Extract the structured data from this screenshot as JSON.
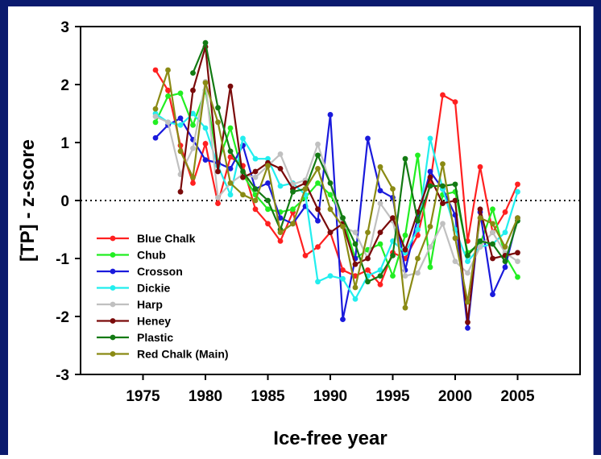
{
  "chart_data": {
    "type": "line",
    "xlabel": "Ice-free year",
    "ylabel": "[TP] - z-score",
    "xlim": [
      1970,
      2010
    ],
    "ylim": [
      -3,
      3
    ],
    "x_ticks": [
      1975,
      1980,
      1985,
      1990,
      1995,
      2000,
      2005
    ],
    "y_ticks": [
      3,
      2,
      1,
      0,
      -1,
      -2,
      -3
    ],
    "reference_line": {
      "y": 0,
      "style": "dotted"
    },
    "legend_position": "bottom-left",
    "colors": {
      "background_frame": "#0b1a6e",
      "plot_background": "#ffffff"
    },
    "x": [
      1976,
      1977,
      1978,
      1979,
      1980,
      1981,
      1982,
      1983,
      1984,
      1985,
      1986,
      1987,
      1988,
      1989,
      1990,
      1991,
      1992,
      1993,
      1994,
      1995,
      1996,
      1997,
      1998,
      1999,
      2000,
      2001,
      2002,
      2003,
      2004,
      2005
    ],
    "series": [
      {
        "name": "Blue Chalk",
        "color": "#ff2020",
        "values": [
          2.25,
          1.9,
          0.95,
          0.3,
          0.98,
          -0.05,
          0.75,
          0.6,
          -0.15,
          -0.4,
          -0.7,
          -0.2,
          -0.95,
          -0.8,
          -0.55,
          -1.2,
          -1.3,
          -1.2,
          -1.45,
          -0.9,
          -1.0,
          -0.6,
          0.3,
          1.82,
          1.7,
          -0.7,
          0.58,
          -0.55,
          -0.2,
          0.28
        ]
      },
      {
        "name": "Chub",
        "color": "#22ee22",
        "values": [
          1.35,
          1.8,
          1.85,
          1.3,
          1.9,
          0.65,
          1.25,
          0.45,
          0.1,
          -0.15,
          -0.2,
          -0.15,
          0.05,
          0.3,
          0.1,
          -0.3,
          -1.0,
          -0.85,
          -0.75,
          -1.3,
          -0.6,
          0.78,
          -1.15,
          0.1,
          0.15,
          -0.9,
          -0.75,
          -0.15,
          -0.95,
          -1.32
        ]
      },
      {
        "name": "Crosson",
        "color": "#1a1adc",
        "values": [
          1.08,
          1.3,
          1.42,
          1.05,
          0.7,
          0.65,
          0.55,
          0.95,
          0.2,
          0.3,
          -0.3,
          -0.4,
          -0.1,
          -0.35,
          1.48,
          -2.05,
          -1.0,
          1.07,
          0.17,
          0.05,
          -1.2,
          -0.3,
          0.5,
          0.2,
          -0.25,
          -2.2,
          -0.2,
          -1.62,
          -1.15,
          -0.3
        ]
      },
      {
        "name": "Dickie",
        "color": "#22eeee",
        "values": [
          1.5,
          1.35,
          1.3,
          1.5,
          1.25,
          0.6,
          0.1,
          1.07,
          0.72,
          0.72,
          0.25,
          0.3,
          0.1,
          -1.4,
          -1.3,
          -1.35,
          -1.7,
          -1.3,
          -1.2,
          -0.7,
          -0.9,
          -0.5,
          1.07,
          0.2,
          -0.5,
          -1.05,
          -0.8,
          -0.75,
          -0.55,
          0.15
        ]
      },
      {
        "name": "Harp",
        "color": "#c0c0c0",
        "values": [
          1.45,
          1.35,
          0.45,
          0.9,
          2.05,
          0.05,
          0.3,
          0.45,
          0.4,
          0.6,
          0.8,
          0.28,
          0.35,
          0.97,
          0.3,
          -0.45,
          -0.55,
          -1.0,
          -0.05,
          -0.35,
          -1.3,
          -1.25,
          -0.8,
          -0.4,
          -1.05,
          -1.25,
          -0.8,
          -0.55,
          -0.9,
          -1.05
        ]
      },
      {
        "name": "Heney",
        "color": "#7a0a0a",
        "values": [
          null,
          null,
          0.15,
          1.9,
          2.65,
          0.5,
          1.97,
          0.4,
          0.5,
          0.65,
          0.55,
          0.2,
          0.3,
          -0.15,
          -0.55,
          -0.4,
          -1.1,
          -1.0,
          -0.55,
          -0.3,
          -0.85,
          -0.2,
          0.4,
          -0.05,
          0.0,
          -2.1,
          -0.15,
          -1.0,
          -0.95,
          -0.9
        ]
      },
      {
        "name": "Plastic",
        "color": "#137a13",
        "values": [
          null,
          null,
          null,
          2.2,
          2.72,
          1.6,
          0.85,
          0.5,
          0.2,
          0.0,
          -0.5,
          0.15,
          0.2,
          0.78,
          0.3,
          -0.3,
          -0.75,
          -1.4,
          -1.3,
          -0.95,
          0.72,
          -0.35,
          0.25,
          0.25,
          0.28,
          -0.95,
          -0.7,
          -0.75,
          -1.05,
          -0.35
        ]
      },
      {
        "name": "Red Chalk (Main)",
        "color": "#8a8a14",
        "values": [
          1.58,
          2.25,
          0.85,
          0.4,
          2.03,
          1.35,
          0.3,
          0.1,
          0.0,
          0.6,
          -0.55,
          -0.4,
          0.2,
          0.55,
          -0.15,
          -0.45,
          -1.5,
          -0.55,
          0.58,
          0.2,
          -1.85,
          -1.0,
          -0.45,
          0.63,
          -0.65,
          -1.75,
          -0.3,
          -0.4,
          -0.8,
          -0.3
        ]
      }
    ]
  }
}
